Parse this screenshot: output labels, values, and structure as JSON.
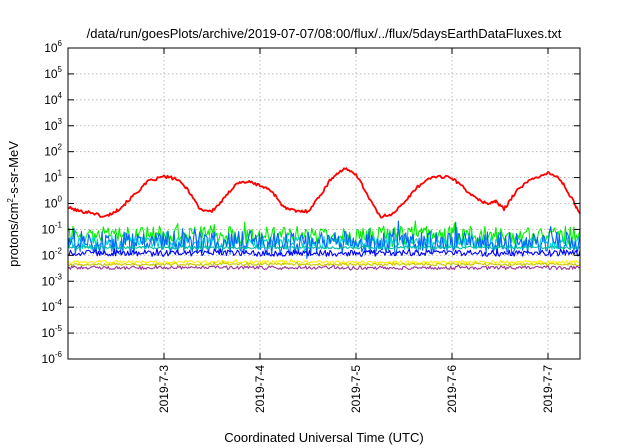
{
  "chart_data": {
    "type": "line",
    "title": "/data/run/goesPlots/archive/2019-07-07/08:00/flux/../flux/5daysEarthDataFluxes.txt",
    "xlabel": "Coordinated Universal Time (UTC)",
    "ylabel_parts": [
      "protons/cm",
      "2",
      "-s-sr-MeV"
    ],
    "y_scale": "log",
    "ylim": [
      1e-06,
      1000000.0
    ],
    "y_ticks": [
      {
        "exp": "-6"
      },
      {
        "exp": "-5"
      },
      {
        "exp": "-4"
      },
      {
        "exp": "-3"
      },
      {
        "exp": "-2"
      },
      {
        "exp": "-1"
      },
      {
        "exp": "0"
      },
      {
        "exp": "1"
      },
      {
        "exp": "2"
      },
      {
        "exp": "3"
      },
      {
        "exp": "4"
      },
      {
        "exp": "5"
      },
      {
        "exp": "6"
      }
    ],
    "x_domain": [
      "2019-07-02",
      "2019-07-07 08:00"
    ],
    "x_ticks": [
      "2019-7-3",
      "2019-7-4",
      "2019-7-5",
      "2019-7-6",
      "2019-7-7"
    ],
    "grid": true,
    "series": [
      {
        "color": "#ff0000",
        "points": [
          [
            "2019-07-02 00:00",
            0.7
          ],
          [
            "2019-07-02 03:00",
            0.5
          ],
          [
            "2019-07-02 06:00",
            0.45
          ],
          [
            "2019-07-02 09:00",
            0.3
          ],
          [
            "2019-07-02 12:00",
            0.5
          ],
          [
            "2019-07-02 14:00",
            0.9
          ],
          [
            "2019-07-02 17:00",
            2.5
          ],
          [
            "2019-07-02 20:00",
            7.0
          ],
          [
            "2019-07-03 00:00",
            11.0
          ],
          [
            "2019-07-03 03:00",
            9.0
          ],
          [
            "2019-07-03 06:00",
            3.5
          ],
          [
            "2019-07-03 09:00",
            0.6
          ],
          [
            "2019-07-03 12:00",
            0.5
          ],
          [
            "2019-07-03 15:00",
            1.5
          ],
          [
            "2019-07-03 18:00",
            6.0
          ],
          [
            "2019-07-03 21:00",
            7.0
          ],
          [
            "2019-07-04 00:00",
            5.0
          ],
          [
            "2019-07-04 03:00",
            3.0
          ],
          [
            "2019-07-04 06:00",
            0.7
          ],
          [
            "2019-07-04 09:00",
            0.5
          ],
          [
            "2019-07-04 12:00",
            0.5
          ],
          [
            "2019-07-04 15:00",
            2.0
          ],
          [
            "2019-07-04 18:00",
            10.0
          ],
          [
            "2019-07-04 21:00",
            22.0
          ],
          [
            "2019-07-05 00:00",
            14.0
          ],
          [
            "2019-07-05 03:00",
            2.0
          ],
          [
            "2019-07-05 06:00",
            0.3
          ],
          [
            "2019-07-05 09:00",
            0.4
          ],
          [
            "2019-07-05 12:00",
            1.0
          ],
          [
            "2019-07-05 15:00",
            4.0
          ],
          [
            "2019-07-05 19:00",
            11.0
          ],
          [
            "2019-07-06 00:00",
            10.0
          ],
          [
            "2019-07-06 03:00",
            4.0
          ],
          [
            "2019-07-06 06:00",
            1.5
          ],
          [
            "2019-07-06 09:00",
            1.0
          ],
          [
            "2019-07-06 11:00",
            1.2
          ],
          [
            "2019-07-06 13:00",
            0.6
          ],
          [
            "2019-07-06 16:00",
            3.0
          ],
          [
            "2019-07-06 20:00",
            9.0
          ],
          [
            "2019-07-07 00:00",
            15.0
          ],
          [
            "2019-07-07 03:00",
            9.0
          ],
          [
            "2019-07-07 06:00",
            1.5
          ],
          [
            "2019-07-07 08:00",
            0.4
          ]
        ]
      },
      {
        "color": "#00ee00",
        "level": 0.06,
        "spread": 0.35
      },
      {
        "color": "#00d4d4",
        "level": 0.03,
        "spread": 0.25
      },
      {
        "color": "#0066ff",
        "level": 0.03,
        "spread": 0.45
      },
      {
        "color": "#0000ff",
        "level": 0.012,
        "spread": 0.12
      },
      {
        "color": "#00c0a0",
        "level": 0.02,
        "spread": 0.05
      },
      {
        "color": "#ffee00",
        "level": 0.0055,
        "spread": 0.06
      },
      {
        "color": "#c8c800",
        "level": 0.0045,
        "spread": 0.05
      },
      {
        "color": "#993399",
        "level": 0.0033,
        "spread": 0.07
      }
    ]
  }
}
